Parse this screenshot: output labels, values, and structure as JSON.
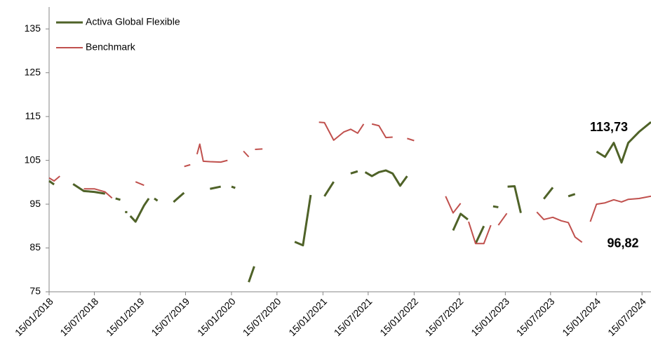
{
  "chart_data": {
    "type": "line",
    "x": [
      "15/01/2018",
      "04/02/2018",
      "27/02/2018",
      "10/03/2018",
      "10/04/2018",
      "21/04/2018",
      "03/06/2018",
      "15/07/2018",
      "27/08/2018",
      "24/09/2018",
      "08/10/2018",
      "27/10/2018",
      "06/11/2018",
      "15/11/2018",
      "24/11/2018",
      "27/11/2018",
      "06/12/2018",
      "27/12/2018",
      "30/01/2019",
      "18/02/2019",
      "21/02/2019",
      "12/03/2019",
      "25/03/2019",
      "06/04/2019",
      "15/04/2019",
      "24/05/2019",
      "28/05/2019",
      "09/07/2019",
      "10/07/2019",
      "03/08/2019",
      "21/08/2019",
      "30/08/2019",
      "10/09/2019",
      "24/09/2019",
      "21/10/2019",
      "03/12/2019",
      "30/12/2019",
      "15/01/2020",
      "30/01/2020",
      "09/02/2020",
      "26/02/2020",
      "03/03/2020",
      "24/03/2020",
      "15/04/2020",
      "18/04/2020",
      "18/05/2020",
      "04/06/2020",
      "09/06/2020",
      "15/06/2020",
      "21/06/2020",
      "24/06/2020",
      "27/06/2020",
      "21/07/2020",
      "27/07/2020",
      "18/08/2020",
      "12/09/2020",
      "24/09/2020",
      "27/10/2020",
      "27/11/2020",
      "30/11/2020",
      "23/12/2020",
      "30/12/2020",
      "21/01/2021",
      "27/02/2021",
      "09/04/2021",
      "06/05/2021",
      "03/06/2021",
      "27/06/2021",
      "03/07/2021",
      "30/07/2021",
      "27/08/2021",
      "24/09/2021",
      "21/10/2021",
      "20/11/2021",
      "18/12/2021",
      "15/01/2022",
      "21/01/2022",
      "12/02/2022",
      "18/02/2022",
      "06/03/2022",
      "15/03/2022",
      "03/04/2022",
      "13/04/2022",
      "24/04/2022",
      "15/05/2022",
      "21/05/2022",
      "20/06/2022",
      "20/07/2022",
      "18/08/2022",
      "21/08/2022",
      "18/09/2022",
      "21/10/2022",
      "18/11/2022",
      "27/11/2022",
      "18/12/2022",
      "21/01/2023",
      "24/01/2023",
      "21/02/2023",
      "18/03/2023",
      "24/03/2023",
      "06/05/2023",
      "21/05/2023",
      "18/06/2023",
      "24/07/2023",
      "27/08/2023",
      "24/09/2023",
      "21/10/2023",
      "18/11/2023",
      "12/12/2023",
      "21/12/2023",
      "15/01/2024",
      "18/02/2024",
      "24/03/2024",
      "24/04/2024",
      "21/05/2024",
      "03/07/2024",
      "20/08/2024"
    ],
    "series": [
      {
        "name": "Activa Global Flexible",
        "color": "#4f6228",
        "values": [
          100.3,
          99.5,
          null,
          99.8,
          null,
          99.6,
          98,
          97.8,
          97.4,
          null,
          96.3,
          96,
          null,
          93.2,
          93.2,
          null,
          92.3,
          91,
          94.7,
          96.3,
          null,
          96.3,
          95.8,
          null,
          97.4,
          null,
          95.5,
          97.6,
          null,
          null,
          96.3,
          null,
          98.7,
          null,
          98.5,
          99,
          null,
          99,
          98.7,
          null,
          94.2,
          null,
          77.2,
          80.8,
          null,
          null,
          88.8,
          null,
          87.5,
          null,
          88.8,
          null,
          86.2,
          null,
          89,
          null,
          86.4,
          85.6,
          97.1,
          null,
          96.8,
          null,
          96.8,
          100.1,
          null,
          102,
          102.5,
          null,
          102.3,
          101.4,
          102.3,
          102.7,
          102,
          99.2,
          101.4,
          null,
          102.2,
          null,
          98.7,
          null,
          98.7,
          null,
          96.4,
          null,
          96.4,
          null,
          89,
          92.8,
          91.5,
          null,
          86,
          90,
          null,
          94.5,
          94.3,
          null,
          99,
          99.1,
          93,
          null,
          94.5,
          null,
          96.2,
          98.8,
          null,
          96.8,
          97.3,
          null,
          104.6,
          null,
          107,
          105.8,
          109,
          104.5,
          109,
          111.5,
          113.73
        ],
        "value_labels": [
          null,
          null,
          null,
          null,
          null,
          null,
          null,
          null,
          null,
          null,
          null,
          null,
          null,
          null,
          null,
          null,
          null,
          null,
          null,
          null,
          null,
          null,
          null,
          null,
          null,
          null,
          null,
          null,
          null,
          null,
          null,
          null,
          null,
          null,
          null,
          null,
          null,
          null,
          null,
          null,
          null,
          null,
          null,
          null,
          null,
          null,
          null,
          null,
          null,
          null,
          null,
          null,
          null,
          null,
          null,
          null,
          null,
          null,
          null,
          null,
          null,
          null,
          null,
          null,
          null,
          null,
          null,
          null,
          null,
          null,
          null,
          null,
          null,
          null,
          null,
          null,
          null,
          null,
          null,
          null,
          null,
          null,
          null,
          null,
          null,
          null,
          null,
          null,
          null,
          null,
          null,
          null,
          null,
          null,
          null,
          null,
          null,
          null,
          null,
          null,
          null,
          null,
          null,
          null,
          null,
          null,
          null,
          null,
          null,
          null,
          null,
          null,
          null,
          null,
          null,
          null,
          "113,73"
        ]
      },
      {
        "name": "Benchmark",
        "color": "#c0504d",
        "values": [
          101,
          100.3,
          101.4,
          null,
          99.8,
          null,
          98.5,
          98.5,
          97.8,
          96.4,
          null,
          null,
          96.3,
          null,
          null,
          98.3,
          null,
          100.1,
          99.3,
          null,
          100.6,
          null,
          null,
          100.3,
          null,
          101.8,
          null,
          null,
          103.6,
          104,
          null,
          106.4,
          108.7,
          104.8,
          104.7,
          104.6,
          105,
          null,
          null,
          106.7,
          null,
          107.1,
          105.8,
          null,
          107.5,
          107.6,
          null,
          108.6,
          null,
          108.6,
          null,
          112.2,
          null,
          112.1,
          null,
          111.3,
          null,
          113.5,
          null,
          115,
          null,
          113.7,
          113.6,
          109.6,
          111.5,
          112.1,
          111.2,
          113.3,
          null,
          113.3,
          112.9,
          110.2,
          110.3,
          null,
          110,
          109.5,
          null,
          107.5,
          null,
          106.3,
          null,
          102.5,
          null,
          96.8,
          null,
          96.8,
          93,
          95.2,
          null,
          91,
          86,
          86,
          90.2,
          null,
          90.2,
          92.9,
          null,
          90,
          null,
          92.8,
          null,
          93.2,
          91.5,
          92,
          91.2,
          90.8,
          87.5,
          86.3,
          null,
          91,
          95,
          95.3,
          96,
          95.5,
          96.1,
          96.3,
          96.82
        ],
        "value_labels": [
          null,
          null,
          null,
          null,
          null,
          null,
          null,
          null,
          null,
          null,
          null,
          null,
          null,
          null,
          null,
          null,
          null,
          null,
          null,
          null,
          null,
          null,
          null,
          null,
          null,
          null,
          null,
          null,
          null,
          null,
          null,
          null,
          null,
          null,
          null,
          null,
          null,
          null,
          null,
          null,
          null,
          null,
          null,
          null,
          null,
          null,
          null,
          null,
          null,
          null,
          null,
          null,
          null,
          null,
          null,
          null,
          null,
          null,
          null,
          null,
          null,
          null,
          null,
          null,
          null,
          null,
          null,
          null,
          null,
          null,
          null,
          null,
          null,
          null,
          null,
          null,
          null,
          null,
          null,
          null,
          null,
          null,
          null,
          null,
          null,
          null,
          null,
          null,
          null,
          null,
          null,
          null,
          null,
          null,
          null,
          null,
          null,
          null,
          null,
          null,
          null,
          null,
          null,
          null,
          null,
          null,
          null,
          null,
          null,
          null,
          null,
          null,
          null,
          null,
          null,
          null,
          "96,82"
        ]
      }
    ],
    "xlim": [
      "15/01/2018",
      "20/08/2024"
    ],
    "xticks": [
      "15/01/2018",
      "15/07/2018",
      "15/01/2019",
      "15/07/2019",
      "15/01/2020",
      "15/07/2020",
      "15/01/2021",
      "15/07/2021",
      "15/01/2022",
      "15/07/2022",
      "15/01/2023",
      "15/07/2023",
      "15/01/2024",
      "15/07/2024"
    ],
    "ylim": [
      75,
      140
    ],
    "yticks": [
      75,
      85,
      95,
      105,
      115,
      125,
      135
    ],
    "grid": false,
    "legend": "upper left"
  }
}
